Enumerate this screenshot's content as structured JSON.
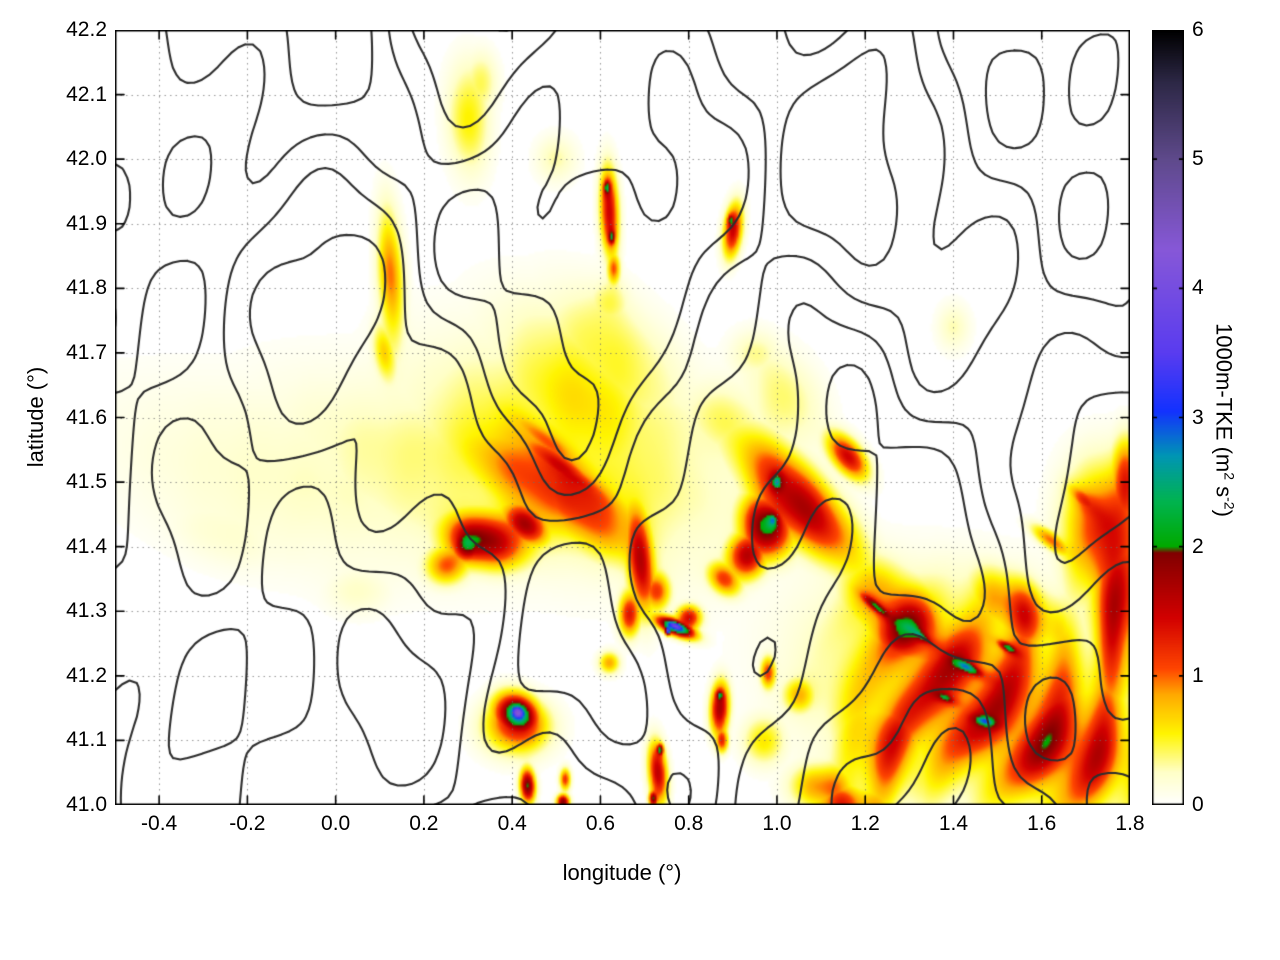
{
  "figure": {
    "background": "#ffffff",
    "colorbar_label": {
      "prefix": "1000m-TKE (m",
      "sup1": "2",
      "mid": " s",
      "sup2": "-2",
      "suffix": ")"
    }
  },
  "chart_data": {
    "type": "heatmap",
    "title": "",
    "xlabel": "longitude (°)",
    "ylabel": "latitude (°)",
    "xlim": [
      -0.5,
      1.8
    ],
    "ylim": [
      41.0,
      42.2
    ],
    "grid": true,
    "x_ticks": [
      "-0.4",
      "-0.2",
      "0.0",
      "0.2",
      "0.4",
      "0.6",
      "0.8",
      "1.0",
      "1.2",
      "1.4",
      "1.6",
      "1.8"
    ],
    "x_tick_values": [
      -0.4,
      -0.2,
      0.0,
      0.2,
      0.4,
      0.6,
      0.8,
      1.0,
      1.2,
      1.4,
      1.6,
      1.8
    ],
    "y_ticks": [
      "41.0",
      "41.1",
      "41.2",
      "41.3",
      "41.4",
      "41.5",
      "41.6",
      "41.7",
      "41.8",
      "41.9",
      "42.0",
      "42.1",
      "42.2"
    ],
    "y_tick_values": [
      41.0,
      41.1,
      41.2,
      41.3,
      41.4,
      41.5,
      41.6,
      41.7,
      41.8,
      41.9,
      42.0,
      42.1,
      42.2
    ],
    "colorbar": {
      "label": "1000m-TKE (m2 s-2)",
      "range": [
        0,
        6
      ],
      "tick_labels": [
        "0",
        "1",
        "2",
        "3",
        "4",
        "5",
        "6"
      ],
      "tick_values": [
        0,
        1,
        2,
        3,
        4,
        5,
        6
      ],
      "palette_stops": [
        [
          0.0,
          "#ffffff"
        ],
        [
          0.25,
          "#ffffc8"
        ],
        [
          0.55,
          "#fff500"
        ],
        [
          0.85,
          "#ffaa00"
        ],
        [
          1.05,
          "#ff4600"
        ],
        [
          1.45,
          "#d20000"
        ],
        [
          1.95,
          "#820000"
        ],
        [
          2.0,
          "#00aa00"
        ],
        [
          2.35,
          "#00b450"
        ],
        [
          2.7,
          "#0096b4"
        ],
        [
          3.05,
          "#1432ff"
        ],
        [
          3.5,
          "#5a3cf0"
        ],
        [
          4.3,
          "#8758d8"
        ],
        [
          5.0,
          "#5f4a8c"
        ],
        [
          5.6,
          "#2d2846"
        ],
        [
          6.0,
          "#000000"
        ]
      ]
    },
    "hotspot_format": "lon_deg, lat_deg, rx_deg, ry_deg, rotation_deg, peak_tke_m2s2",
    "hotspots": [
      [
        -0.1,
        41.5,
        0.5,
        0.14,
        -10,
        0.22
      ],
      [
        0.18,
        41.52,
        0.35,
        0.13,
        -15,
        0.3
      ],
      [
        -0.25,
        41.42,
        0.15,
        0.06,
        -10,
        0.18
      ],
      [
        0.42,
        41.55,
        0.28,
        0.14,
        -25,
        0.45
      ],
      [
        0.55,
        41.63,
        0.22,
        0.11,
        -30,
        0.5
      ],
      [
        0.63,
        41.7,
        0.18,
        0.09,
        -25,
        0.4
      ],
      [
        0.7,
        41.52,
        0.28,
        0.16,
        -20,
        0.32
      ],
      [
        0.88,
        41.6,
        0.1,
        0.06,
        -10,
        0.32
      ],
      [
        1.02,
        41.63,
        0.1,
        0.07,
        -30,
        0.38
      ],
      [
        0.95,
        41.7,
        0.06,
        0.04,
        0,
        0.3
      ],
      [
        0.62,
        41.78,
        0.05,
        0.04,
        0,
        0.38
      ],
      [
        1.4,
        41.74,
        0.04,
        0.04,
        0,
        0.28
      ],
      [
        0.05,
        41.33,
        0.08,
        0.04,
        0,
        0.22
      ],
      [
        0.3,
        42.06,
        0.05,
        0.09,
        5,
        0.55
      ],
      [
        0.33,
        42.12,
        0.04,
        0.05,
        0,
        0.38
      ],
      [
        0.5,
        42.0,
        0.05,
        0.04,
        0,
        0.3
      ],
      [
        0.125,
        41.82,
        0.03,
        0.11,
        5,
        0.95
      ],
      [
        0.11,
        41.7,
        0.025,
        0.05,
        15,
        0.62
      ],
      [
        0.62,
        41.92,
        0.022,
        0.07,
        3,
        1.55
      ],
      [
        0.615,
        41.955,
        0.01,
        0.016,
        0,
        2.1
      ],
      [
        0.625,
        41.88,
        0.01,
        0.015,
        0,
        2.0
      ],
      [
        0.63,
        41.83,
        0.015,
        0.025,
        0,
        1.0
      ],
      [
        0.9,
        41.89,
        0.022,
        0.045,
        -12,
        1.5
      ],
      [
        0.895,
        41.905,
        0.009,
        0.012,
        0,
        1.9
      ],
      [
        0.45,
        41.5,
        0.2,
        0.065,
        -22,
        0.8
      ],
      [
        0.56,
        41.46,
        0.16,
        0.055,
        -25,
        0.95
      ],
      [
        0.5,
        41.53,
        0.1,
        0.02,
        -25,
        0.8
      ],
      [
        0.47,
        41.57,
        0.09,
        0.018,
        -25,
        0.7
      ],
      [
        0.55,
        41.5,
        0.1,
        0.02,
        -25,
        0.75
      ],
      [
        0.34,
        41.41,
        0.095,
        0.042,
        -8,
        1.65
      ],
      [
        0.3,
        41.405,
        0.035,
        0.028,
        0,
        1.85
      ],
      [
        0.43,
        41.435,
        0.05,
        0.028,
        -20,
        1.5
      ],
      [
        0.25,
        41.37,
        0.05,
        0.03,
        0,
        0.95
      ],
      [
        0.69,
        41.38,
        0.03,
        0.085,
        8,
        1.45
      ],
      [
        0.665,
        41.295,
        0.025,
        0.035,
        0,
        1.35
      ],
      [
        0.73,
        41.33,
        0.03,
        0.03,
        0,
        1.0
      ],
      [
        1.05,
        41.47,
        0.155,
        0.055,
        -33,
        1.7
      ],
      [
        0.975,
        41.43,
        0.06,
        0.045,
        -25,
        1.9
      ],
      [
        1.0,
        41.5,
        0.016,
        0.016,
        0,
        2.35
      ],
      [
        0.99,
        41.44,
        0.014,
        0.014,
        0,
        2.2
      ],
      [
        1.16,
        41.54,
        0.055,
        0.028,
        -33,
        1.45
      ],
      [
        0.93,
        41.385,
        0.045,
        0.035,
        0,
        1.55
      ],
      [
        0.88,
        41.35,
        0.04,
        0.025,
        -20,
        1.1
      ],
      [
        0.77,
        41.275,
        0.048,
        0.013,
        -15,
        2.5
      ],
      [
        0.77,
        41.277,
        0.028,
        0.008,
        -15,
        3.3
      ],
      [
        0.753,
        41.27,
        0.007,
        0.007,
        0,
        3.6
      ],
      [
        0.8,
        41.29,
        0.03,
        0.02,
        0,
        1.4
      ],
      [
        0.41,
        41.14,
        0.052,
        0.034,
        -12,
        2.1
      ],
      [
        0.413,
        41.143,
        0.02,
        0.014,
        -12,
        3.5
      ],
      [
        0.41,
        41.12,
        0.08,
        0.045,
        0,
        1.1
      ],
      [
        0.435,
        41.03,
        0.018,
        0.028,
        5,
        1.9
      ],
      [
        0.52,
        41.04,
        0.013,
        0.018,
        0,
        1.2
      ],
      [
        0.515,
        41.005,
        0.015,
        0.012,
        0,
        1.9
      ],
      [
        0.73,
        41.05,
        0.022,
        0.05,
        8,
        1.65
      ],
      [
        0.735,
        41.085,
        0.009,
        0.011,
        0,
        2.1
      ],
      [
        0.72,
        41.01,
        0.011,
        0.013,
        0,
        1.9
      ],
      [
        0.87,
        41.15,
        0.022,
        0.042,
        -5,
        1.8
      ],
      [
        0.87,
        41.17,
        0.009,
        0.009,
        0,
        2.2
      ],
      [
        0.875,
        41.1,
        0.015,
        0.02,
        0,
        1.2
      ],
      [
        0.98,
        41.205,
        0.018,
        0.026,
        0,
        1.15
      ],
      [
        0.62,
        41.22,
        0.025,
        0.018,
        0,
        0.85
      ],
      [
        1.45,
        41.17,
        0.33,
        0.15,
        -8,
        1.2
      ],
      [
        1.65,
        41.09,
        0.22,
        0.11,
        -5,
        1.3
      ],
      [
        1.3,
        41.275,
        0.14,
        0.065,
        -28,
        1.45
      ],
      [
        1.74,
        41.42,
        0.09,
        0.11,
        10,
        1.25
      ],
      [
        1.78,
        41.3,
        0.07,
        0.14,
        0,
        1.35
      ],
      [
        1.55,
        41.3,
        0.11,
        0.05,
        -22,
        1.15
      ],
      [
        1.25,
        41.09,
        0.11,
        0.09,
        0,
        1.0
      ],
      [
        1.23,
        41.305,
        0.045,
        0.011,
        -28,
        2.2
      ],
      [
        1.33,
        41.26,
        0.038,
        0.009,
        -25,
        2.1
      ],
      [
        1.44,
        41.21,
        0.045,
        0.011,
        -18,
        2.3
      ],
      [
        1.385,
        41.165,
        0.03,
        0.009,
        -15,
        1.9
      ],
      [
        1.52,
        41.245,
        0.03,
        0.009,
        -20,
        2.0
      ],
      [
        1.47,
        41.13,
        0.035,
        0.01,
        -10,
        1.8
      ],
      [
        1.1,
        41.03,
        0.07,
        0.035,
        0,
        0.9
      ],
      [
        1.16,
        41.0,
        0.09,
        0.03,
        0,
        1.05
      ],
      [
        1.79,
        41.5,
        0.035,
        0.07,
        0,
        1.2
      ],
      [
        1.7,
        41.47,
        0.05,
        0.018,
        -30,
        1.05
      ],
      [
        1.62,
        41.41,
        0.05,
        0.015,
        -25,
        1.0
      ],
      [
        0.97,
        41.1,
        0.05,
        0.04,
        0,
        0.6
      ],
      [
        1.05,
        41.17,
        0.04,
        0.03,
        0,
        0.7
      ]
    ],
    "overlay_contours": {
      "color": "#2e2e2e",
      "line_width": 2.1,
      "levels": [
        -0.52,
        -0.18,
        0.16,
        0.5
      ],
      "harmonic_format": "amp, freq_lon, freq_lat, phase  (terrain = sum amp*sin(freq_lon*lon + freq_lat*(lat-41) + phase))",
      "harmonics": [
        [
          0.32,
          3.7,
          6.1,
          0.8
        ],
        [
          0.26,
          6.3,
          -4.7,
          2.1
        ],
        [
          0.22,
          9.1,
          8.3,
          4.4
        ],
        [
          0.16,
          12.7,
          -10.9,
          1.3
        ],
        [
          0.12,
          17.3,
          14.1,
          3.6
        ],
        [
          0.1,
          22.9,
          -18.7,
          5.2
        ]
      ]
    }
  }
}
